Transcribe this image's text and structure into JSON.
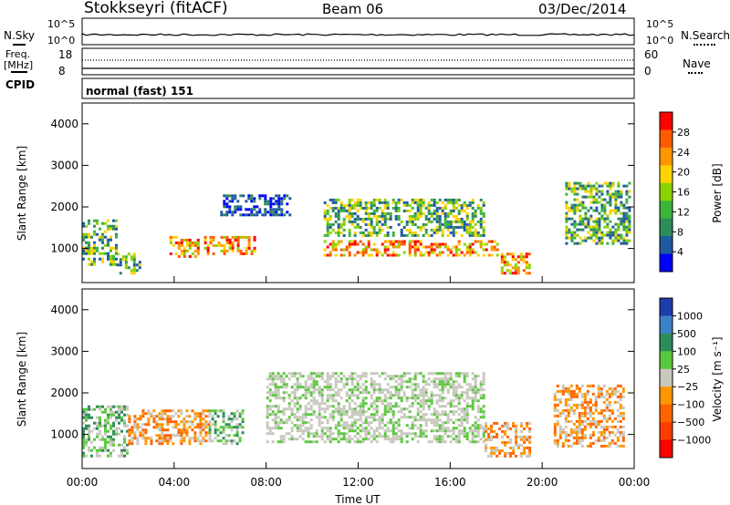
{
  "header": {
    "station": "Stokkseyri (fitACF)",
    "beam": "Beam 06",
    "date": "03/Dec/2014"
  },
  "top_panels": {
    "nsky_label": "N.Sky",
    "nsearch_label": "N.Search",
    "nsky_ticks": [
      "10^5",
      "10^0"
    ],
    "nsearch_ticks": [
      "10^5",
      "10^0"
    ],
    "freq_label": "Freq.",
    "freq_unit": "[MHz]",
    "freq_ticks": [
      "18",
      "8"
    ],
    "nave_label": "Nave",
    "nave_ticks": [
      "60",
      "0"
    ],
    "cpid_label": "CPID",
    "cpid_value": "normal (fast) 151"
  },
  "chart_data": [
    {
      "type": "heatmap",
      "name": "power",
      "ylabel": "Slant Range [km]",
      "ylim": [
        180,
        4500
      ],
      "yticks": [
        "1000",
        "2000",
        "3000",
        "4000"
      ],
      "colorbar_label": "Power [dB]",
      "colorbar_ticks": [
        "28",
        "24",
        "20",
        "16",
        "12",
        "8",
        "4"
      ],
      "colorbar_colors": [
        "#ff0000",
        "#ff5a00",
        "#ff9600",
        "#ffd200",
        "#8cd200",
        "#3cb43c",
        "#2d8c5a",
        "#1e5aa0",
        "#0000ff"
      ],
      "regions": [
        {
          "t": [
            0.0,
            1.5
          ],
          "r": [
            600,
            1700
          ],
          "level": "mid"
        },
        {
          "t": [
            1.5,
            2.5
          ],
          "r": [
            400,
            900
          ],
          "level": "mid"
        },
        {
          "t": [
            3.8,
            5.0
          ],
          "r": [
            800,
            1300
          ],
          "level": "high"
        },
        {
          "t": [
            5.3,
            7.5
          ],
          "r": [
            850,
            1300
          ],
          "level": "high"
        },
        {
          "t": [
            6.0,
            9.0
          ],
          "r": [
            1800,
            2300
          ],
          "level": "low"
        },
        {
          "t": [
            10.5,
            18.0
          ],
          "r": [
            850,
            1200
          ],
          "level": "high"
        },
        {
          "t": [
            10.5,
            17.5
          ],
          "r": [
            1300,
            2200
          ],
          "level": "mid"
        },
        {
          "t": [
            18.2,
            19.5
          ],
          "r": [
            400,
            900
          ],
          "level": "high"
        },
        {
          "t": [
            21.0,
            23.8
          ],
          "r": [
            1100,
            2600
          ],
          "level": "mid"
        }
      ]
    },
    {
      "type": "heatmap",
      "name": "velocity",
      "xlabel": "Time UT",
      "ylabel": "Slant Range [km]",
      "xlim": [
        0,
        24
      ],
      "ylim": [
        180,
        4500
      ],
      "xticks": [
        "00:00",
        "04:00",
        "08:00",
        "12:00",
        "16:00",
        "20:00",
        "00:00"
      ],
      "yticks": [
        "1000",
        "2000",
        "3000",
        "4000"
      ],
      "colorbar_label": "Velocity [m s⁻¹]",
      "colorbar_ticks": [
        "1000",
        "500",
        "100",
        "25",
        "−25",
        "−100",
        "−500",
        "−1000"
      ],
      "colorbar_colors": [
        "#1e3caa",
        "#3c82c8",
        "#2d8c5a",
        "#5ac83c",
        "#c8c8be",
        "#ff9600",
        "#ff6400",
        "#ff3c00",
        "#ff0000"
      ],
      "regions": [
        {
          "t": [
            0.0,
            2.0
          ],
          "r": [
            500,
            1700
          ],
          "level": "green"
        },
        {
          "t": [
            2.0,
            5.5
          ],
          "r": [
            800,
            1600
          ],
          "level": "orange"
        },
        {
          "t": [
            5.5,
            7.0
          ],
          "r": [
            800,
            1600
          ],
          "level": "green"
        },
        {
          "t": [
            8.0,
            17.5
          ],
          "r": [
            800,
            2500
          ],
          "level": "grey"
        },
        {
          "t": [
            17.5,
            19.5
          ],
          "r": [
            450,
            1300
          ],
          "level": "orange"
        },
        {
          "t": [
            20.5,
            23.5
          ],
          "r": [
            700,
            2200
          ],
          "level": "orange"
        }
      ]
    }
  ]
}
